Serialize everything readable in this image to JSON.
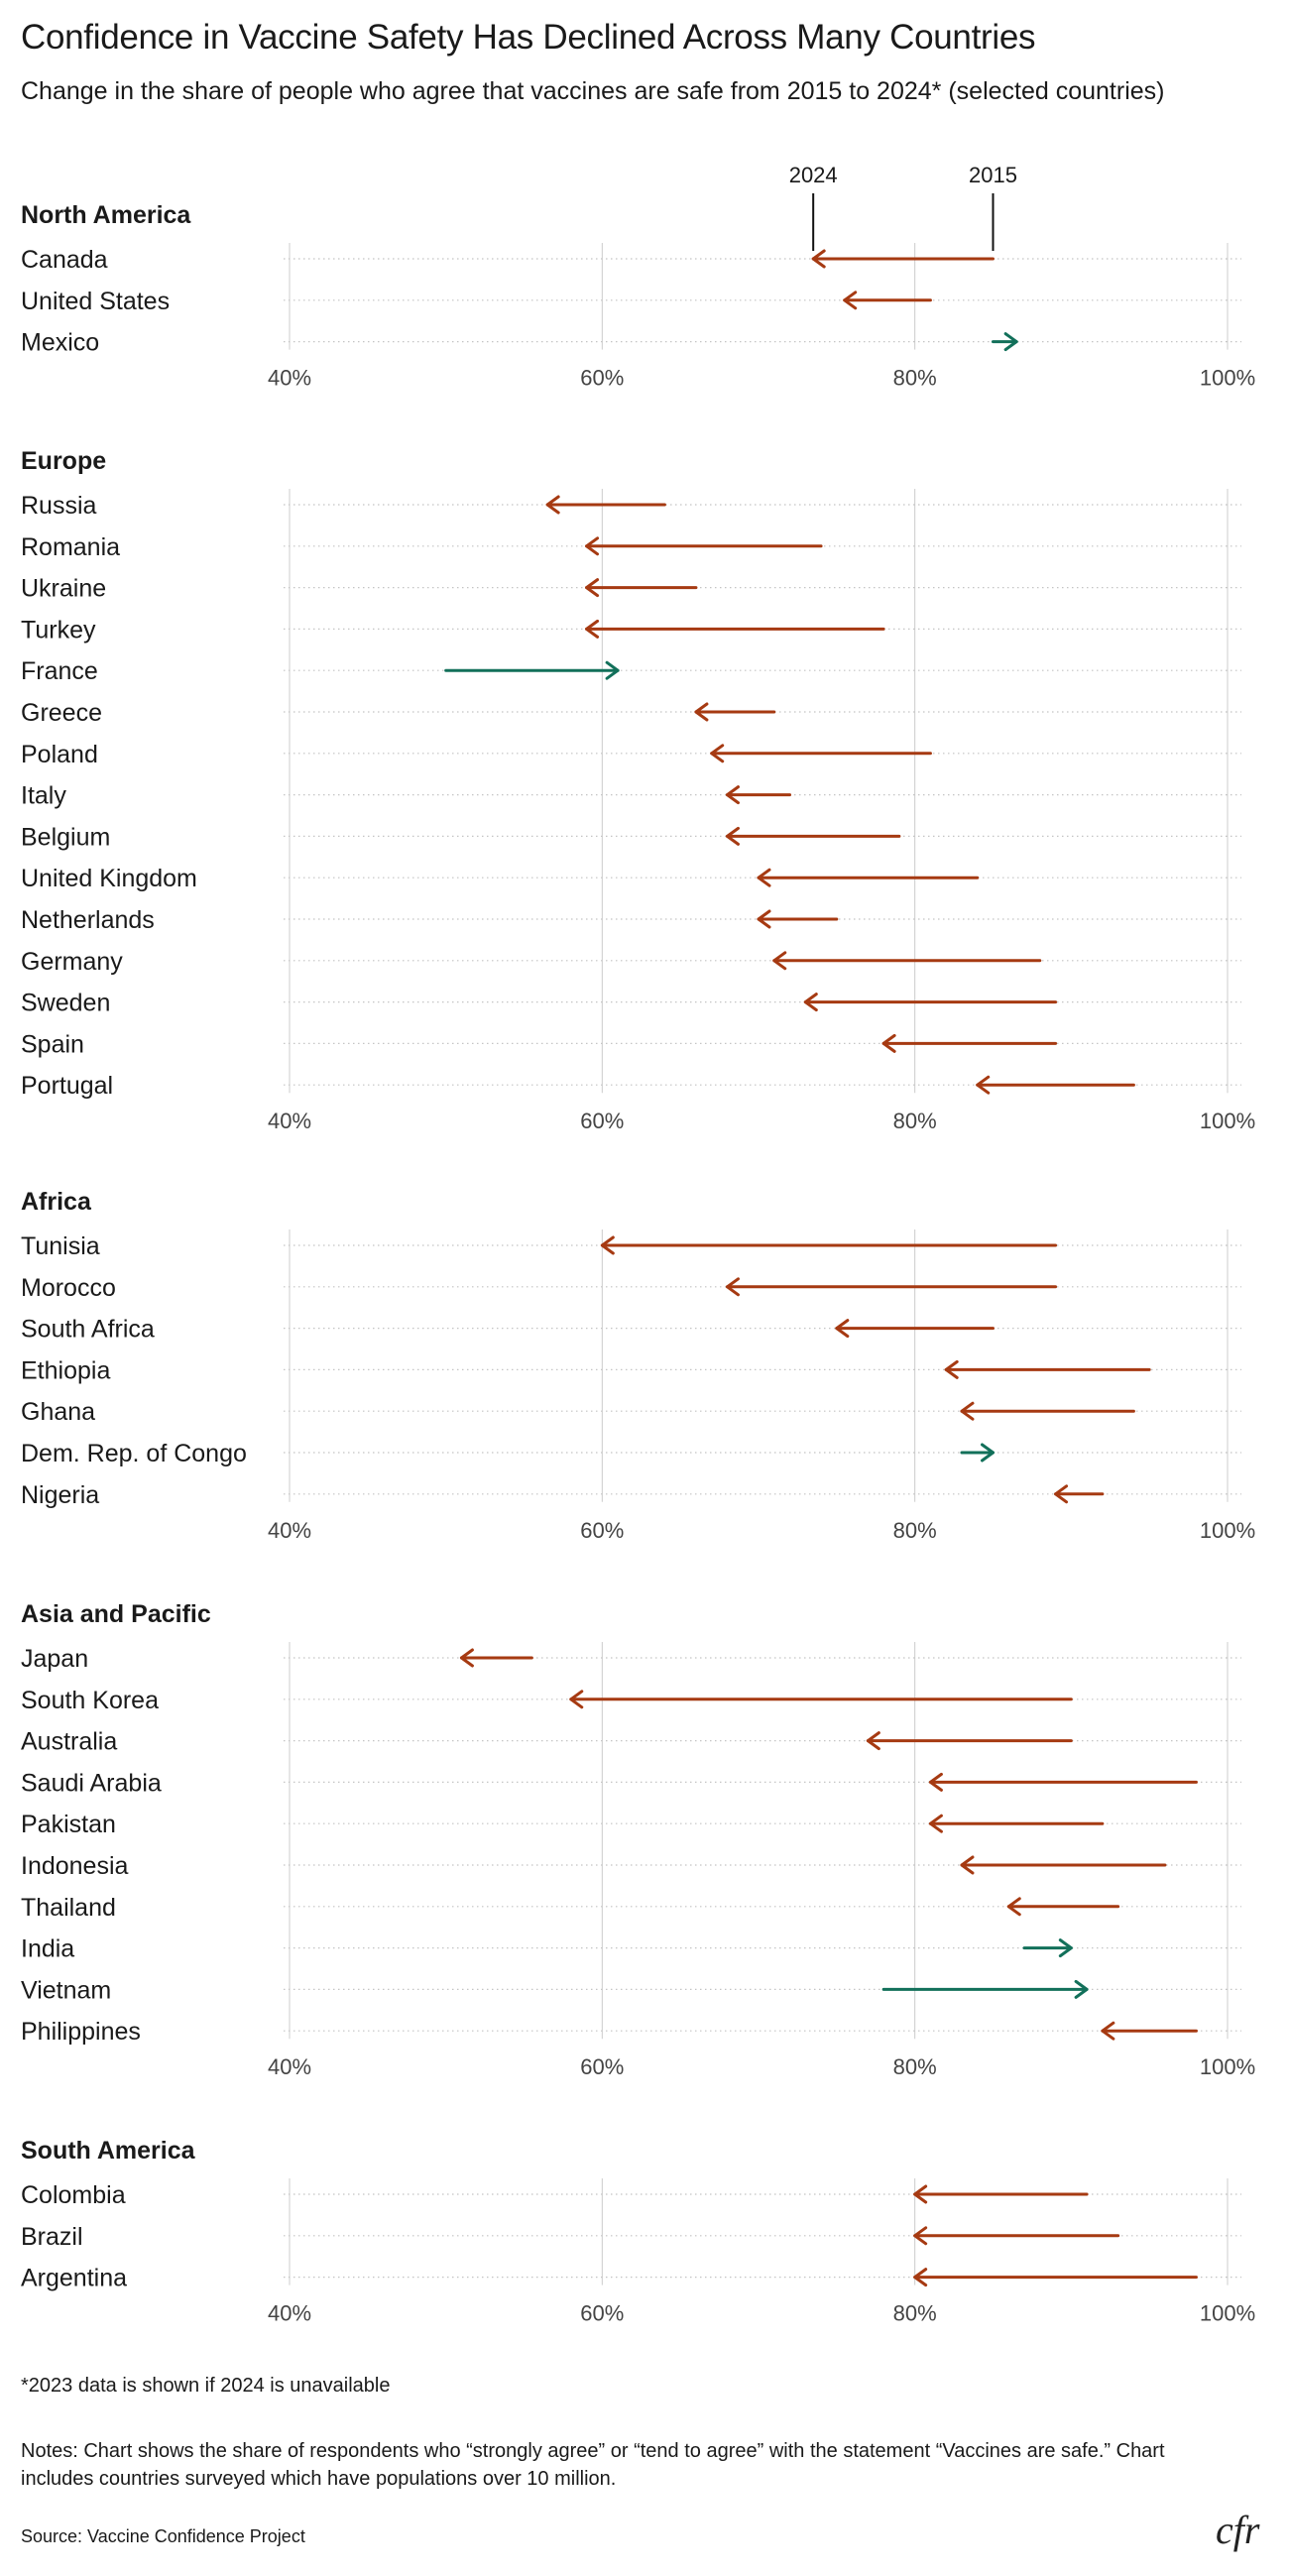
{
  "title": "Confidence in Vaccine Safety Has Declined Across Many Countries",
  "subtitle": "Change in the share of people who agree that vaccines are safe from 2015 to 2024* (selected countries)",
  "footnote": "*2023 data is shown if 2024 is unavailable",
  "notes": "Notes: Chart shows the share of respondents who “strongly agree” or “tend to agree” with the statement “Vaccines are safe.” Chart includes countries surveyed which have populations over 10 million.",
  "source": "Source: Vaccine Confidence Project",
  "logo_text": "cfr",
  "colors": {
    "decline": "#a63a12",
    "increase": "#12705a",
    "grid": "#cccccc",
    "row_dots": "#c4c4c4"
  },
  "chart_data": {
    "type": "arrow-dumbbell",
    "x_unit": "%",
    "xlim": [
      40,
      100
    ],
    "x_ticks": [
      40,
      60,
      80,
      100
    ],
    "x_tick_labels": [
      "40%",
      "60%",
      "80%",
      "100%"
    ],
    "legend": {
      "start_label": "2015",
      "end_label": "2024"
    },
    "regions": [
      {
        "name": "North America",
        "countries": [
          {
            "name": "Canada",
            "v2015": 85.0,
            "v2024": 73.5
          },
          {
            "name": "United States",
            "v2015": 81.0,
            "v2024": 75.5
          },
          {
            "name": "Mexico",
            "v2015": 85.0,
            "v2024": 86.5
          }
        ]
      },
      {
        "name": "Europe",
        "countries": [
          {
            "name": "Russia",
            "v2015": 64.0,
            "v2024": 56.5
          },
          {
            "name": "Romania",
            "v2015": 74.0,
            "v2024": 59.0
          },
          {
            "name": "Ukraine",
            "v2015": 66.0,
            "v2024": 59.0
          },
          {
            "name": "Turkey",
            "v2015": 78.0,
            "v2024": 59.0
          },
          {
            "name": "France",
            "v2015": 50.0,
            "v2024": 61.0
          },
          {
            "name": "Greece",
            "v2015": 71.0,
            "v2024": 66.0
          },
          {
            "name": "Poland",
            "v2015": 81.0,
            "v2024": 67.0
          },
          {
            "name": "Italy",
            "v2015": 72.0,
            "v2024": 68.0
          },
          {
            "name": "Belgium",
            "v2015": 79.0,
            "v2024": 68.0
          },
          {
            "name": "United Kingdom",
            "v2015": 84.0,
            "v2024": 70.0
          },
          {
            "name": "Netherlands",
            "v2015": 75.0,
            "v2024": 70.0
          },
          {
            "name": "Germany",
            "v2015": 88.0,
            "v2024": 71.0
          },
          {
            "name": "Sweden",
            "v2015": 89.0,
            "v2024": 73.0
          },
          {
            "name": "Spain",
            "v2015": 89.0,
            "v2024": 78.0
          },
          {
            "name": "Portugal",
            "v2015": 94.0,
            "v2024": 84.0
          }
        ]
      },
      {
        "name": "Africa",
        "countries": [
          {
            "name": "Tunisia",
            "v2015": 89.0,
            "v2024": 60.0
          },
          {
            "name": "Morocco",
            "v2015": 89.0,
            "v2024": 68.0
          },
          {
            "name": "South Africa",
            "v2015": 85.0,
            "v2024": 75.0
          },
          {
            "name": "Ethiopia",
            "v2015": 95.0,
            "v2024": 82.0
          },
          {
            "name": "Ghana",
            "v2015": 94.0,
            "v2024": 83.0
          },
          {
            "name": "Dem. Rep. of Congo",
            "v2015": 83.0,
            "v2024": 85.0
          },
          {
            "name": "Nigeria",
            "v2015": 92.0,
            "v2024": 89.0
          }
        ]
      },
      {
        "name": "Asia and Pacific",
        "countries": [
          {
            "name": "Japan",
            "v2015": 55.5,
            "v2024": 51.0
          },
          {
            "name": "South Korea",
            "v2015": 90.0,
            "v2024": 58.0
          },
          {
            "name": "Australia",
            "v2015": 90.0,
            "v2024": 77.0
          },
          {
            "name": "Saudi Arabia",
            "v2015": 98.0,
            "v2024": 81.0
          },
          {
            "name": "Pakistan",
            "v2015": 92.0,
            "v2024": 81.0
          },
          {
            "name": "Indonesia",
            "v2015": 96.0,
            "v2024": 83.0
          },
          {
            "name": "Thailand",
            "v2015": 93.0,
            "v2024": 86.0
          },
          {
            "name": "India",
            "v2015": 87.0,
            "v2024": 90.0
          },
          {
            "name": "Vietnam",
            "v2015": 78.0,
            "v2024": 91.0
          },
          {
            "name": "Philippines",
            "v2015": 98.0,
            "v2024": 92.0
          }
        ]
      },
      {
        "name": "South America",
        "countries": [
          {
            "name": "Colombia",
            "v2015": 91.0,
            "v2024": 80.0
          },
          {
            "name": "Brazil",
            "v2015": 93.0,
            "v2024": 80.0
          },
          {
            "name": "Argentina",
            "v2015": 98.0,
            "v2024": 80.0
          }
        ]
      }
    ]
  }
}
